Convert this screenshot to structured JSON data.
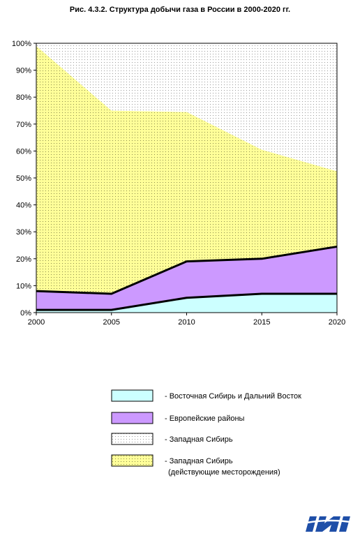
{
  "title": "Рис. 4.3.2. Структура добычи газа в России в 2000-2020 гг.",
  "chart_data": {
    "type": "area",
    "stacked": true,
    "x": [
      2000,
      2005,
      2010,
      2015,
      2020
    ],
    "x_tick_labels": [
      "2000",
      "2005",
      "2010",
      "2015",
      "2020"
    ],
    "ylim": [
      0,
      100
    ],
    "y_tick_labels": [
      "0%",
      "10%",
      "20%",
      "30%",
      "40%",
      "50%",
      "60%",
      "70%",
      "80%",
      "90%",
      "100%"
    ],
    "grid": false,
    "legend_position": "bottom",
    "series": [
      {
        "name": "- Восточная Сибирь и Дальний Восток",
        "values": [
          1,
          1,
          5.5,
          7,
          7
        ],
        "color": "#ccffff",
        "pattern": "solid"
      },
      {
        "name": "- Европейские районы",
        "values": [
          7,
          6,
          13.5,
          13,
          17.5
        ],
        "color": "#cc99ff",
        "pattern": "solid"
      },
      {
        "name": "- Западная Сибирь\n(действующие месторождения)",
        "values": [
          91,
          68,
          55.5,
          40.5,
          28
        ],
        "color": "#ffff99",
        "pattern": "dotted"
      },
      {
        "name": "- Западная Сибирь",
        "values": [
          1,
          25,
          25.5,
          39.5,
          47.5
        ],
        "color": "#ffffff",
        "pattern": "dotted"
      }
    ],
    "legend_order": [
      0,
      1,
      3,
      2
    ]
  },
  "legend": [
    {
      "label": "- Восточная Сибирь и Дальний Восток",
      "label2": ""
    },
    {
      "label": "- Европейские районы",
      "label2": ""
    },
    {
      "label": "- Западная Сибирь",
      "label2": ""
    },
    {
      "label": "- Западная Сибирь",
      "label2": "(действующие месторождения)"
    }
  ],
  "colors": {
    "ev_siberia": "#ccffff",
    "european": "#cc99ff",
    "ws_active": "#ffff99",
    "ws_new": "#ffffff"
  },
  "logo": {
    "icon": "ini-logo-icon"
  }
}
